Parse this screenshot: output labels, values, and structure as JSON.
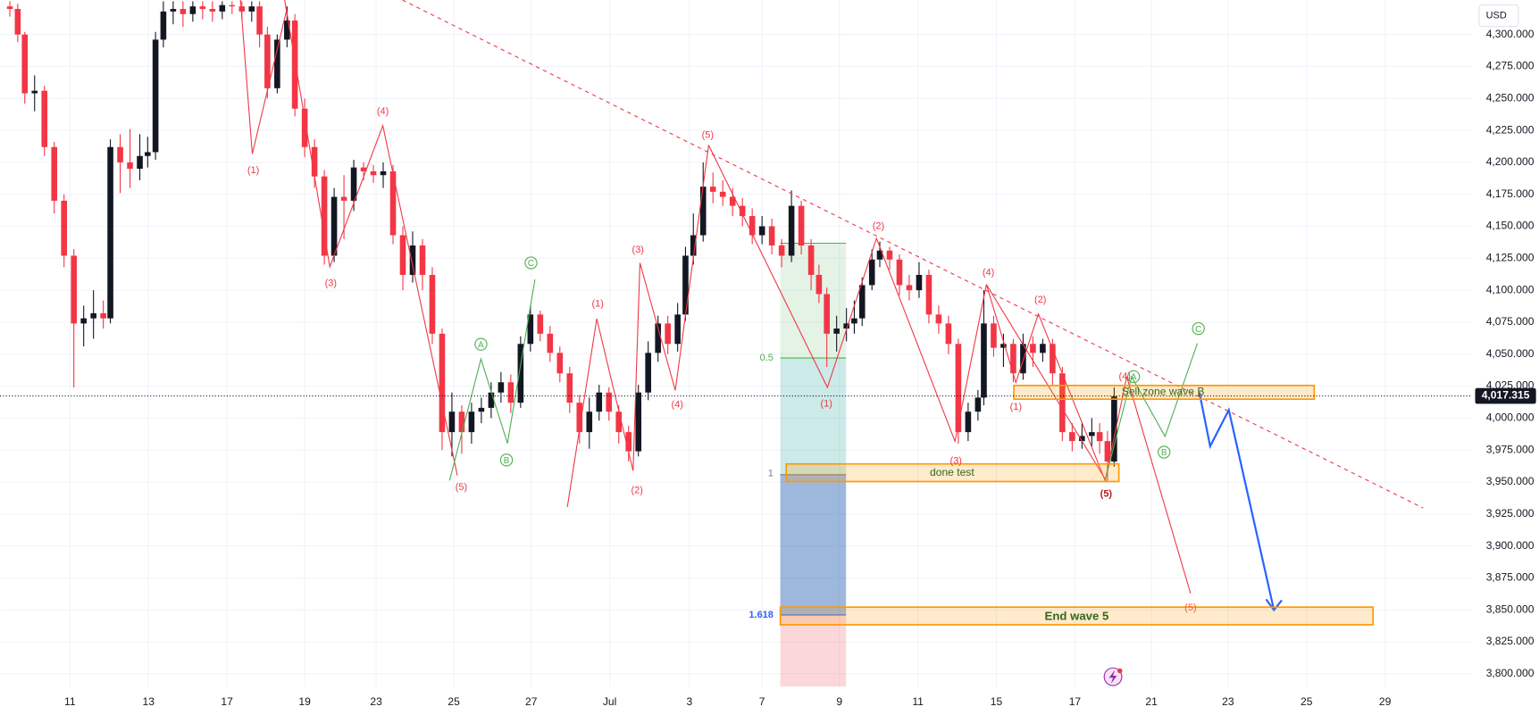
{
  "chart_data": {
    "type": "candlestick",
    "currency": "USD",
    "up_color": "#131722",
    "down_color": "#f23645",
    "grid": true,
    "xlim": [
      -1.78,
      35.72
    ],
    "ylim": [
      3790,
      4327
    ],
    "xticks": [
      {
        "value": 0,
        "label": "11"
      },
      {
        "value": 2,
        "label": "13"
      },
      {
        "value": 4,
        "label": "17"
      },
      {
        "value": 5.98,
        "label": "19"
      },
      {
        "value": 7.8,
        "label": "23"
      },
      {
        "value": 9.78,
        "label": "25"
      },
      {
        "value": 11.75,
        "label": "27"
      },
      {
        "value": 13.75,
        "label": "Jul"
      },
      {
        "value": 15.78,
        "label": "3"
      },
      {
        "value": 17.63,
        "label": "7"
      },
      {
        "value": 19.6,
        "label": "9"
      },
      {
        "value": 21.6,
        "label": "11"
      },
      {
        "value": 23.6,
        "label": "15"
      },
      {
        "value": 25.6,
        "label": "17"
      },
      {
        "value": 27.55,
        "label": "21"
      },
      {
        "value": 29.5,
        "label": "23"
      },
      {
        "value": 31.5,
        "label": "25"
      },
      {
        "value": 33.5,
        "label": "29"
      }
    ],
    "yticks": [
      {
        "value": 4300,
        "label": "4,300.000"
      },
      {
        "value": 4275,
        "label": "4,275.000"
      },
      {
        "value": 4250,
        "label": "4,250.000"
      },
      {
        "value": 4225,
        "label": "4,225.000"
      },
      {
        "value": 4200,
        "label": "4,200.000"
      },
      {
        "value": 4175,
        "label": "4,175.000"
      },
      {
        "value": 4150,
        "label": "4,150.000"
      },
      {
        "value": 4125,
        "label": "4,125.000"
      },
      {
        "value": 4100,
        "label": "4,100.000"
      },
      {
        "value": 4075,
        "label": "4,075.000"
      },
      {
        "value": 4050,
        "label": "4,050.000"
      },
      {
        "value": 4025,
        "label": "4,025.000"
      },
      {
        "value": 4000,
        "label": "4,000.000"
      },
      {
        "value": 3975,
        "label": "3,975.000"
      },
      {
        "value": 3950,
        "label": "3,950.000"
      },
      {
        "value": 3925,
        "label": "3,925.000"
      },
      {
        "value": 3900,
        "label": "3,900.000"
      },
      {
        "value": 3875,
        "label": "3,875.000"
      },
      {
        "value": 3850,
        "label": "3,850.000"
      },
      {
        "value": 3825,
        "label": "3,825.000"
      },
      {
        "value": 3800,
        "label": "3,800.000"
      }
    ],
    "last_price": {
      "value": 4017.315,
      "label": "4,017.315"
    },
    "candles": [
      [
        -1.53,
        4322,
        4326,
        4314,
        4320
      ],
      [
        -1.33,
        4320,
        4324,
        4294,
        4300
      ],
      [
        -1.15,
        4300,
        4302,
        4246,
        4254
      ],
      [
        -0.9,
        4254,
        4268,
        4240,
        4256
      ],
      [
        -0.65,
        4256,
        4260,
        4205,
        4212
      ],
      [
        -0.4,
        4212,
        4216,
        4160,
        4170
      ],
      [
        -0.15,
        4170,
        4175,
        4118,
        4127
      ],
      [
        0.1,
        4127,
        4132,
        4024,
        4074
      ],
      [
        0.35,
        4074,
        4088,
        4056,
        4078
      ],
      [
        0.6,
        4078,
        4100,
        4062,
        4082
      ],
      [
        0.85,
        4082,
        4092,
        4070,
        4078
      ],
      [
        1.03,
        4078,
        4218,
        4074,
        4212
      ],
      [
        1.28,
        4212,
        4222,
        4176,
        4200
      ],
      [
        1.53,
        4200,
        4226,
        4180,
        4195
      ],
      [
        1.78,
        4195,
        4222,
        4186,
        4205
      ],
      [
        1.98,
        4205,
        4220,
        4196,
        4208
      ],
      [
        2.18,
        4208,
        4302,
        4202,
        4296
      ],
      [
        2.38,
        4296,
        4326,
        4290,
        4318
      ],
      [
        2.63,
        4318,
        4326,
        4308,
        4320
      ],
      [
        2.88,
        4320,
        4326,
        4306,
        4316
      ],
      [
        3.13,
        4316,
        4326,
        4310,
        4322
      ],
      [
        3.38,
        4322,
        4326,
        4312,
        4320
      ],
      [
        3.63,
        4320,
        4326,
        4310,
        4318
      ],
      [
        3.88,
        4318,
        4326,
        4312,
        4323
      ],
      [
        4.13,
        4323,
        4326,
        4316,
        4322
      ],
      [
        4.38,
        4322,
        4326,
        4312,
        4318
      ],
      [
        4.63,
        4318,
        4326,
        4310,
        4322
      ],
      [
        4.83,
        4322,
        4326,
        4290,
        4300
      ],
      [
        5.03,
        4300,
        4306,
        4250,
        4258
      ],
      [
        5.28,
        4258,
        4300,
        4254,
        4296
      ],
      [
        5.53,
        4296,
        4322,
        4290,
        4311
      ],
      [
        5.73,
        4311,
        4316,
        4236,
        4242
      ],
      [
        5.98,
        4242,
        4250,
        4204,
        4212
      ],
      [
        6.23,
        4212,
        4218,
        4180,
        4189
      ],
      [
        6.48,
        4189,
        4194,
        4120,
        4127
      ],
      [
        6.73,
        4127,
        4180,
        4122,
        4173
      ],
      [
        6.98,
        4173,
        4190,
        4140,
        4170
      ],
      [
        7.23,
        4170,
        4202,
        4162,
        4196
      ],
      [
        7.48,
        4196,
        4200,
        4186,
        4193
      ],
      [
        7.73,
        4193,
        4198,
        4184,
        4190
      ],
      [
        7.98,
        4190,
        4200,
        4180,
        4193
      ],
      [
        8.23,
        4193,
        4198,
        4136,
        4143
      ],
      [
        8.48,
        4143,
        4150,
        4100,
        4112
      ],
      [
        8.73,
        4112,
        4146,
        4106,
        4135
      ],
      [
        8.98,
        4135,
        4140,
        4100,
        4112
      ],
      [
        9.23,
        4112,
        4118,
        4058,
        4066
      ],
      [
        9.48,
        4066,
        4070,
        3975,
        3989
      ],
      [
        9.73,
        3989,
        4020,
        3970,
        4005
      ],
      [
        9.98,
        4005,
        4010,
        3972,
        3989
      ],
      [
        10.23,
        3989,
        4012,
        3980,
        4005
      ],
      [
        10.48,
        4005,
        4016,
        3996,
        4008
      ],
      [
        10.73,
        4008,
        4028,
        4000,
        4020
      ],
      [
        10.98,
        4020,
        4036,
        4012,
        4028
      ],
      [
        11.23,
        4028,
        4034,
        4004,
        4012
      ],
      [
        11.48,
        4012,
        4064,
        4008,
        4058
      ],
      [
        11.73,
        4058,
        4088,
        4052,
        4081
      ],
      [
        11.98,
        4081,
        4084,
        4060,
        4066
      ],
      [
        12.23,
        4066,
        4072,
        4044,
        4051
      ],
      [
        12.48,
        4051,
        4056,
        4028,
        4035
      ],
      [
        12.73,
        4035,
        4040,
        4004,
        4012
      ],
      [
        12.98,
        4012,
        4018,
        3980,
        3989
      ],
      [
        13.23,
        3989,
        4016,
        3976,
        4005
      ],
      [
        13.48,
        4005,
        4026,
        3998,
        4020
      ],
      [
        13.73,
        4020,
        4024,
        3998,
        4005
      ],
      [
        13.98,
        4005,
        4010,
        3980,
        3989
      ],
      [
        14.23,
        3989,
        3994,
        3966,
        3974
      ],
      [
        14.48,
        3974,
        4026,
        3970,
        4020
      ],
      [
        14.73,
        4020,
        4060,
        4014,
        4051
      ],
      [
        14.98,
        4051,
        4080,
        4044,
        4074
      ],
      [
        15.23,
        4074,
        4080,
        4050,
        4058
      ],
      [
        15.48,
        4058,
        4090,
        4052,
        4081
      ],
      [
        15.68,
        4081,
        4134,
        4076,
        4127
      ],
      [
        15.88,
        4127,
        4160,
        4120,
        4143
      ],
      [
        16.13,
        4143,
        4200,
        4138,
        4181
      ],
      [
        16.38,
        4181,
        4192,
        4168,
        4177
      ],
      [
        16.63,
        4177,
        4186,
        4166,
        4173
      ],
      [
        16.88,
        4173,
        4180,
        4158,
        4166
      ],
      [
        17.13,
        4166,
        4172,
        4150,
        4158
      ],
      [
        17.38,
        4158,
        4164,
        4136,
        4143
      ],
      [
        17.63,
        4143,
        4158,
        4136,
        4150
      ],
      [
        17.88,
        4150,
        4156,
        4128,
        4135
      ],
      [
        18.13,
        4135,
        4140,
        4118,
        4127
      ],
      [
        18.38,
        4127,
        4178,
        4122,
        4166
      ],
      [
        18.63,
        4166,
        4170,
        4128,
        4135
      ],
      [
        18.88,
        4135,
        4140,
        4100,
        4112
      ],
      [
        19.08,
        4112,
        4120,
        4090,
        4097
      ],
      [
        19.28,
        4097,
        4102,
        4040,
        4066
      ],
      [
        19.53,
        4066,
        4080,
        4052,
        4070
      ],
      [
        19.78,
        4070,
        4086,
        4060,
        4074
      ],
      [
        19.98,
        4074,
        4092,
        4066,
        4078
      ],
      [
        20.18,
        4078,
        4110,
        4072,
        4104
      ],
      [
        20.43,
        4104,
        4132,
        4100,
        4124
      ],
      [
        20.63,
        4124,
        4138,
        4118,
        4131
      ],
      [
        20.88,
        4131,
        4134,
        4116,
        4124
      ],
      [
        21.13,
        4124,
        4128,
        4096,
        4104
      ],
      [
        21.38,
        4104,
        4112,
        4092,
        4100
      ],
      [
        21.63,
        4100,
        4122,
        4094,
        4112
      ],
      [
        21.88,
        4112,
        4116,
        4074,
        4081
      ],
      [
        22.13,
        4081,
        4088,
        4066,
        4074
      ],
      [
        22.38,
        4074,
        4080,
        4050,
        4058
      ],
      [
        22.63,
        4058,
        4062,
        3980,
        3989
      ],
      [
        22.88,
        3989,
        4012,
        3982,
        4005
      ],
      [
        23.13,
        4005,
        4022,
        3998,
        4016
      ],
      [
        23.28,
        4016,
        4100,
        4010,
        4074
      ],
      [
        23.53,
        4074,
        4080,
        4048,
        4055
      ],
      [
        23.78,
        4055,
        4066,
        4040,
        4058
      ],
      [
        24.03,
        4058,
        4062,
        4028,
        4035
      ],
      [
        24.28,
        4035,
        4066,
        4030,
        4058
      ],
      [
        24.53,
        4058,
        4064,
        4040,
        4051
      ],
      [
        24.78,
        4051,
        4062,
        4044,
        4058
      ],
      [
        25.03,
        4058,
        4062,
        4026,
        4035
      ],
      [
        25.28,
        4035,
        4040,
        3982,
        3989
      ],
      [
        25.53,
        3989,
        3996,
        3974,
        3982
      ],
      [
        25.78,
        3982,
        3996,
        3976,
        3986
      ],
      [
        26.03,
        3986,
        4000,
        3978,
        3989
      ],
      [
        26.23,
        3989,
        3996,
        3972,
        3982
      ],
      [
        26.43,
        3982,
        3990,
        3951,
        3966
      ],
      [
        26.6,
        3966,
        4024,
        3962,
        4017
      ]
    ]
  },
  "fib_levels": [
    0.5,
    1,
    1.618
  ],
  "zones": [
    "Sell zone wave B",
    "done test",
    "End wave 5"
  ],
  "wave_labels": [
    "(1)",
    "(3)",
    "(4)",
    "(5)",
    "(1)",
    "(2)",
    "(3)",
    "(4)",
    "(5)",
    "(1)",
    "(2)",
    "(3)",
    "(4)",
    "(1)",
    "(2)",
    "(5)",
    "(4)",
    "(5)"
  ],
  "abc_labels": [
    "A",
    "B",
    "C",
    "A",
    "B",
    "C"
  ]
}
